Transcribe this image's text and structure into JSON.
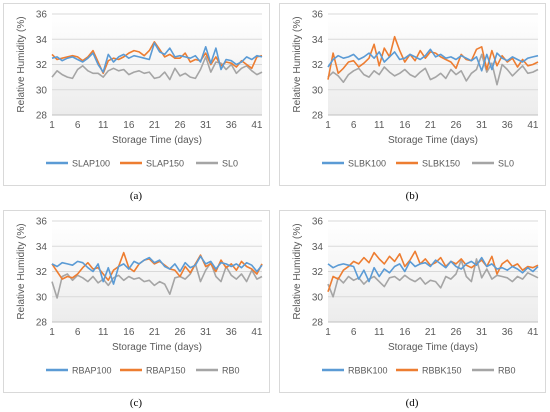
{
  "chart_data": [
    {
      "type": "line",
      "caption": "(a)",
      "xlabel": "Storage Time (days)",
      "ylabel": "Relative Humidity (%)",
      "ylim": [
        28,
        36
      ],
      "yticks": [
        28,
        30,
        32,
        34,
        36
      ],
      "xlim": [
        1,
        42
      ],
      "xticks": [
        1,
        6,
        11,
        16,
        21,
        26,
        31,
        36,
        41
      ],
      "grid": true,
      "legend": "bottom",
      "x": [
        1,
        2,
        3,
        4,
        5,
        6,
        7,
        8,
        9,
        10,
        11,
        12,
        13,
        14,
        15,
        16,
        17,
        18,
        19,
        20,
        21,
        22,
        23,
        24,
        25,
        26,
        27,
        28,
        29,
        30,
        31,
        32,
        33,
        34,
        35,
        36,
        37,
        38,
        39,
        40,
        41,
        42
      ],
      "series": [
        {
          "name": "SLAP100",
          "color": "#5B9BD5",
          "values": [
            32.5,
            32.6,
            32.3,
            32.5,
            32.6,
            32.4,
            32.2,
            32.5,
            32.9,
            32.0,
            31.4,
            32.8,
            32.2,
            32.6,
            32.8,
            32.5,
            32.7,
            32.6,
            32.5,
            32.4,
            33.7,
            33.0,
            32.8,
            33.3,
            32.6,
            32.7,
            32.6,
            32.5,
            32.7,
            32.2,
            33.4,
            32.1,
            33.3,
            31.6,
            32.4,
            32.3,
            32.0,
            32.2,
            32.6,
            32.4,
            32.7,
            32.6
          ]
        },
        {
          "name": "SLAP150",
          "color": "#ED7D31",
          "values": [
            32.8,
            32.4,
            32.5,
            32.6,
            32.7,
            32.6,
            32.3,
            32.6,
            33.1,
            32.2,
            31.3,
            32.3,
            32.5,
            32.4,
            32.6,
            32.9,
            33.1,
            33.0,
            32.7,
            33.1,
            33.8,
            33.2,
            32.6,
            32.8,
            32.5,
            32.5,
            32.9,
            32.2,
            32.4,
            32.3,
            32.9,
            32.0,
            32.6,
            31.9,
            32.2,
            32.1,
            31.8,
            32.3,
            32.0,
            31.7,
            32.6,
            32.7
          ]
        },
        {
          "name": "SL0",
          "color": "#A5A5A5",
          "values": [
            31.0,
            31.5,
            31.2,
            31.0,
            30.9,
            31.6,
            31.9,
            31.5,
            31.3,
            31.3,
            31.0,
            31.5,
            31.7,
            31.5,
            31.6,
            31.2,
            31.4,
            31.5,
            31.3,
            31.4,
            30.9,
            31.0,
            31.4,
            30.8,
            31.7,
            31.1,
            31.3,
            31.0,
            30.9,
            31.6,
            32.6,
            31.4,
            32.2,
            32.1,
            31.6,
            32.0,
            31.3,
            31.7,
            31.9,
            31.5,
            31.2,
            31.4
          ]
        }
      ]
    },
    {
      "type": "line",
      "caption": "(b)",
      "xlabel": "Storage Time (days)",
      "ylabel": "Relative Humidity (%)",
      "ylim": [
        28,
        36
      ],
      "yticks": [
        28,
        30,
        32,
        34,
        36
      ],
      "xlim": [
        1,
        42
      ],
      "xticks": [
        1,
        6,
        11,
        16,
        21,
        26,
        31,
        36,
        41
      ],
      "grid": true,
      "legend": "bottom",
      "x": [
        1,
        2,
        3,
        4,
        5,
        6,
        7,
        8,
        9,
        10,
        11,
        12,
        13,
        14,
        15,
        16,
        17,
        18,
        19,
        20,
        21,
        22,
        23,
        24,
        25,
        26,
        27,
        28,
        29,
        30,
        31,
        32,
        33,
        34,
        35,
        36,
        37,
        38,
        39,
        40,
        41,
        42
      ],
      "series": [
        {
          "name": "SLBK100",
          "color": "#5B9BD5",
          "values": [
            31.8,
            32.4,
            32.7,
            32.5,
            32.6,
            32.8,
            32.4,
            32.6,
            32.9,
            32.5,
            33.0,
            32.2,
            32.6,
            33.0,
            32.4,
            32.5,
            32.8,
            32.6,
            32.4,
            32.7,
            33.2,
            32.6,
            32.8,
            32.5,
            32.6,
            32.4,
            32.7,
            32.5,
            32.3,
            32.6,
            31.5,
            32.8,
            31.6,
            32.9,
            32.5,
            32.3,
            32.6,
            32.4,
            32.2,
            32.5,
            32.6,
            32.7
          ]
        },
        {
          "name": "SLBK150",
          "color": "#ED7D31",
          "values": [
            30.8,
            32.9,
            31.3,
            31.7,
            32.2,
            32.3,
            31.8,
            32.1,
            32.5,
            33.6,
            31.9,
            33.3,
            32.6,
            34.2,
            33.1,
            32.2,
            32.8,
            32.3,
            33.1,
            32.5,
            33.0,
            32.9,
            32.6,
            32.4,
            32.2,
            31.7,
            32.8,
            32.4,
            32.3,
            33.2,
            33.4,
            31.6,
            33.1,
            31.9,
            32.7,
            32.2,
            32.5,
            31.8,
            32.4,
            31.9,
            32.0,
            32.2
          ]
        },
        {
          "name": "SL0",
          "color": "#A5A5A5",
          "values": [
            31.0,
            31.4,
            31.1,
            30.6,
            31.2,
            31.5,
            31.7,
            31.2,
            31.0,
            31.5,
            31.2,
            31.8,
            31.4,
            31.1,
            31.3,
            31.6,
            31.2,
            31.0,
            31.4,
            31.7,
            30.8,
            31.0,
            31.3,
            30.9,
            31.6,
            31.2,
            31.5,
            30.7,
            31.3,
            31.6,
            32.8,
            31.4,
            32.1,
            30.4,
            32.0,
            31.6,
            31.1,
            31.5,
            31.9,
            31.3,
            31.4,
            31.6
          ]
        }
      ]
    },
    {
      "type": "line",
      "caption": "(c)",
      "xlabel": "Storage Time (days)",
      "ylabel": "Relative Humidity (%)",
      "ylim": [
        28,
        36
      ],
      "yticks": [
        28,
        30,
        32,
        34,
        36
      ],
      "xlim": [
        1,
        42
      ],
      "xticks": [
        1,
        6,
        11,
        16,
        21,
        26,
        31,
        36,
        41
      ],
      "grid": true,
      "legend": "bottom",
      "x": [
        1,
        2,
        3,
        4,
        5,
        6,
        7,
        8,
        9,
        10,
        11,
        12,
        13,
        14,
        15,
        16,
        17,
        18,
        19,
        20,
        21,
        22,
        23,
        24,
        25,
        26,
        27,
        28,
        29,
        30,
        31,
        32,
        33,
        34,
        35,
        36,
        37,
        38,
        39,
        40,
        41,
        42
      ],
      "series": [
        {
          "name": "RBAP100",
          "color": "#5B9BD5",
          "values": [
            32.6,
            32.4,
            32.7,
            32.6,
            32.5,
            32.8,
            32.7,
            32.3,
            32.0,
            32.6,
            31.2,
            32.3,
            31.0,
            32.4,
            32.6,
            32.2,
            32.8,
            32.6,
            32.9,
            33.1,
            32.7,
            32.9,
            32.4,
            32.2,
            32.6,
            32.0,
            32.7,
            32.3,
            32.5,
            33.2,
            32.6,
            32.8,
            32.2,
            32.7,
            32.6,
            32.4,
            32.6,
            32.3,
            32.7,
            32.5,
            32.0,
            32.5
          ]
        },
        {
          "name": "RBAP150",
          "color": "#ED7D31",
          "values": [
            32.6,
            32.0,
            31.4,
            31.6,
            31.5,
            31.8,
            32.3,
            32.7,
            32.2,
            32.3,
            31.8,
            31.3,
            32.1,
            32.4,
            33.5,
            32.3,
            32.0,
            32.6,
            32.9,
            33.0,
            32.6,
            32.8,
            32.5,
            32.2,
            32.1,
            31.6,
            32.4,
            31.9,
            32.6,
            33.3,
            32.4,
            32.6,
            32.0,
            32.9,
            32.3,
            32.6,
            32.1,
            32.8,
            32.4,
            32.2,
            31.8,
            32.6
          ]
        },
        {
          "name": "RB0",
          "color": "#A5A5A5",
          "values": [
            31.2,
            29.9,
            31.6,
            31.8,
            31.3,
            31.7,
            31.5,
            31.2,
            31.6,
            31.1,
            31.4,
            30.9,
            31.5,
            31.7,
            31.3,
            31.6,
            31.4,
            31.5,
            31.2,
            31.3,
            30.9,
            31.2,
            31.0,
            30.2,
            31.5,
            31.6,
            31.4,
            31.8,
            32.6,
            31.2,
            32.1,
            32.7,
            31.6,
            31.2,
            32.4,
            31.7,
            31.4,
            31.8,
            31.2,
            32.1,
            31.4,
            31.6
          ]
        }
      ]
    },
    {
      "type": "line",
      "caption": "(d)",
      "xlabel": "Storage Time (days)",
      "ylabel": "Relative Humidity (%)",
      "ylim": [
        28,
        36
      ],
      "yticks": [
        28,
        30,
        32,
        34,
        36
      ],
      "xlim": [
        1,
        42
      ],
      "xticks": [
        1,
        6,
        11,
        16,
        21,
        26,
        31,
        36,
        41
      ],
      "grid": true,
      "legend": "bottom",
      "x": [
        1,
        2,
        3,
        4,
        5,
        6,
        7,
        8,
        9,
        10,
        11,
        12,
        13,
        14,
        15,
        16,
        17,
        18,
        19,
        20,
        21,
        22,
        23,
        24,
        25,
        26,
        27,
        28,
        29,
        30,
        31,
        32,
        33,
        34,
        35,
        36,
        37,
        38,
        39,
        40,
        41,
        42
      ],
      "series": [
        {
          "name": "RBBK100",
          "color": "#5B9BD5",
          "values": [
            32.6,
            32.3,
            32.5,
            32.6,
            32.5,
            32.4,
            31.4,
            32.1,
            31.2,
            32.3,
            31.6,
            32.2,
            31.9,
            32.4,
            32.6,
            32.0,
            32.8,
            32.4,
            32.6,
            32.7,
            32.4,
            32.9,
            32.6,
            32.3,
            32.8,
            32.4,
            32.2,
            32.6,
            32.8,
            32.5,
            33.1,
            32.4,
            32.6,
            32.2,
            32.3,
            32.1,
            32.4,
            32.2,
            31.9,
            32.3,
            32.0,
            32.4
          ]
        },
        {
          "name": "RBBK150",
          "color": "#ED7D31",
          "values": [
            30.4,
            31.6,
            31.4,
            32.1,
            32.4,
            32.8,
            32.6,
            33.1,
            32.7,
            33.5,
            33.0,
            32.6,
            33.2,
            32.8,
            33.4,
            32.4,
            32.9,
            33.6,
            32.6,
            33.0,
            32.5,
            32.7,
            33.1,
            32.4,
            32.8,
            32.6,
            33.0,
            32.5,
            32.3,
            32.6,
            32.9,
            32.4,
            33.2,
            31.8,
            32.6,
            32.9,
            32.4,
            32.6,
            32.1,
            32.4,
            32.3,
            32.5
          ]
        },
        {
          "name": "RB0",
          "color": "#A5A5A5",
          "values": [
            31.0,
            30.0,
            31.5,
            31.1,
            31.6,
            31.3,
            31.5,
            31.0,
            31.4,
            31.6,
            31.2,
            30.8,
            31.5,
            31.6,
            31.3,
            31.7,
            31.4,
            31.2,
            31.5,
            31.0,
            31.3,
            31.2,
            30.7,
            31.6,
            31.4,
            31.8,
            32.9,
            31.6,
            31.2,
            33.0,
            31.5,
            32.2,
            31.4,
            31.7,
            31.6,
            31.5,
            31.2,
            31.6,
            31.4,
            31.9,
            31.7,
            31.5
          ]
        }
      ]
    }
  ]
}
